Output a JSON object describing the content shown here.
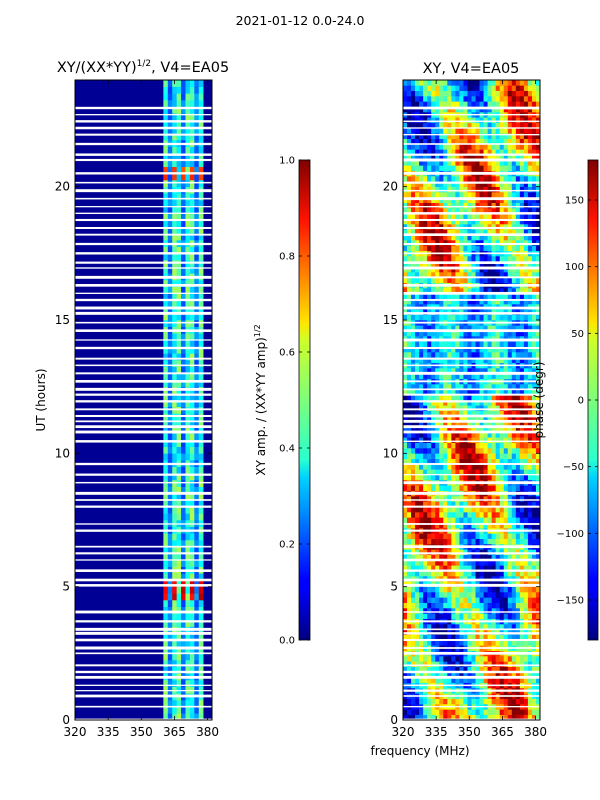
{
  "figure_title": "2021-01-12 0.0-24.0",
  "chart_data": [
    {
      "type": "heatmap",
      "title": "XY/(XX*YY)",
      "title_superscript": "1/2",
      "title_suffix": ", V4=EA05",
      "xlabel": "",
      "ylabel": "UT (hours)",
      "xlim": [
        320,
        382
      ],
      "ylim": [
        0,
        24
      ],
      "x_ticks": [
        "320",
        "335",
        "350",
        "365",
        "380"
      ],
      "y_ticks": [
        "0",
        "5",
        "10",
        "15",
        "20"
      ],
      "colorbar": {
        "label": "XY amp. / (XX*YY amp)",
        "label_superscript": "1/2",
        "range": [
          0.0,
          1.0
        ],
        "ticks": [
          "0.0",
          "0.2",
          "0.4",
          "0.6",
          "0.8",
          "1.0"
        ],
        "colormap": "jet"
      },
      "description_values": {
        "background_level": 0.02,
        "active_band_MHz": [
          360,
          378
        ],
        "active_band_level": 0.3,
        "high_spots": [
          {
            "t": 4.8,
            "level": 0.85
          },
          {
            "t": 20.4,
            "level": 0.75
          }
        ]
      }
    },
    {
      "type": "heatmap",
      "title": "XY, V4=EA05",
      "xlabel": "frequency (MHz)",
      "ylabel": "",
      "xlim": [
        320,
        382
      ],
      "ylim": [
        0,
        24
      ],
      "x_ticks": [
        "320",
        "335",
        "350",
        "365",
        "380"
      ],
      "y_ticks": [
        "0",
        "5",
        "10",
        "15",
        "20"
      ],
      "colorbar": {
        "label": "phase (degr)",
        "range": [
          -180,
          180
        ],
        "ticks": [
          "−150",
          "−100",
          "−50",
          "0",
          "50",
          "100",
          "150"
        ],
        "colormap": "jet"
      }
    }
  ],
  "flag_gaps_hours": [
    0.0,
    0.5,
    0.9,
    1.1,
    1.3,
    1.6,
    1.8,
    2.05,
    2.5,
    2.7,
    3.0,
    3.25,
    3.4,
    3.7,
    4.05,
    5.05,
    5.25,
    5.6,
    6.0,
    6.25,
    6.5,
    7.1,
    7.35,
    8.0,
    8.25,
    8.5,
    8.9,
    9.2,
    9.6,
    10.45,
    10.8,
    11.0,
    11.2,
    11.4,
    11.65,
    11.95,
    12.2,
    12.4,
    12.7,
    13.0,
    13.3,
    13.55,
    13.95,
    14.25,
    14.6,
    14.9,
    15.25,
    15.45,
    15.75,
    16.0,
    16.3,
    16.6,
    16.95,
    17.15,
    17.5,
    17.85,
    18.2,
    18.45,
    18.75,
    19.0,
    19.25,
    19.55,
    19.85,
    20.15,
    20.5,
    21.0,
    21.2,
    21.6,
    21.95,
    22.2,
    22.45,
    22.7,
    22.95
  ]
}
